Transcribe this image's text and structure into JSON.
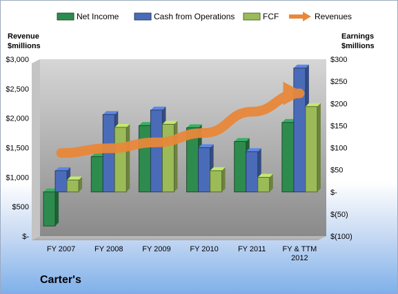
{
  "chart_data": {
    "type": "bar",
    "title": "Carter's",
    "categories": [
      "FY 2007",
      "FY 2008",
      "FY 2009",
      "FY 2010",
      "FY 2011",
      "FY & TTM 2012"
    ],
    "series": [
      {
        "name": "Net Income",
        "axis": "right",
        "color": "#2e8b4e",
        "values": [
          -77,
          80,
          150,
          145,
          114,
          157
        ]
      },
      {
        "name": "Cash from Operations",
        "axis": "right",
        "color": "#4a6cb8",
        "values": [
          48,
          175,
          185,
          100,
          91,
          280
        ]
      },
      {
        "name": "FCF",
        "axis": "right",
        "color": "#9bbb59",
        "values": [
          27,
          146,
          153,
          48,
          33,
          193
        ]
      },
      {
        "name": "Revenues",
        "axis": "left",
        "type": "arrow",
        "color": "#e8883a",
        "values": [
          1410,
          1490,
          1590,
          1750,
          2110,
          2420
        ]
      }
    ],
    "left_axis": {
      "title": [
        "Revenue",
        "$millions"
      ],
      "range": [
        0,
        3000
      ],
      "ticks": [
        {
          "value": 3000,
          "label": "$3,000"
        },
        {
          "value": 2500,
          "label": "$2,500"
        },
        {
          "value": 2000,
          "label": "$2,000"
        },
        {
          "value": 1500,
          "label": "$1,500"
        },
        {
          "value": 1000,
          "label": "$1,000"
        },
        {
          "value": 500,
          "label": "$500"
        },
        {
          "value": 0,
          "label": "$-"
        }
      ]
    },
    "right_axis": {
      "title": [
        "Earnings",
        "$millions"
      ],
      "range": [
        -100,
        300
      ],
      "ticks": [
        {
          "value": 300,
          "label": "$300"
        },
        {
          "value": 250,
          "label": "$250"
        },
        {
          "value": 200,
          "label": "$200"
        },
        {
          "value": 150,
          "label": "$150"
        },
        {
          "value": 100,
          "label": "$100"
        },
        {
          "value": 50,
          "label": "$50"
        },
        {
          "value": 0,
          "label": "$-"
        },
        {
          "value": -50,
          "label": "$(50)"
        },
        {
          "value": -100,
          "label": "$(100)"
        }
      ]
    },
    "legend_position": "top",
    "grid": false
  }
}
